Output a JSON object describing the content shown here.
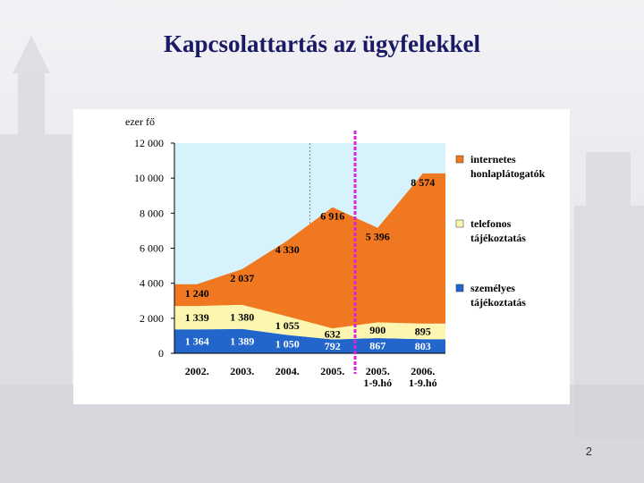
{
  "slide": {
    "title": "Kapcsolattartás az ügyfelekkel",
    "page_number": "2"
  },
  "colors": {
    "title": "#1a1a66",
    "plot_background": "#d6f3fb",
    "internet": "#f07820",
    "phone": "#fcf6b0",
    "personal": "#2266cc",
    "separator": "#dd22dd"
  },
  "chart_data": {
    "type": "area",
    "stacked": true,
    "ylabel": "ezer fő",
    "ylim": [
      0,
      12000
    ],
    "yticks": [
      0,
      2000,
      4000,
      6000,
      8000,
      10000,
      12000
    ],
    "ytick_labels": [
      "0",
      "2 000",
      "4 000",
      "6 000",
      "8 000",
      "10 000",
      "12 000"
    ],
    "categories": [
      "2002.",
      "2003.",
      "2004.",
      "2005.",
      "2005. 1-9.hó",
      "2006. 1-9.hó"
    ],
    "category_lines": [
      [
        "2002."
      ],
      [
        "2003."
      ],
      [
        "2004."
      ],
      [
        "2005."
      ],
      [
        "2005.",
        "1-9.hó"
      ],
      [
        "2006.",
        "1-9.hó"
      ]
    ],
    "legend_position": "right",
    "separator_after_category": "2005.",
    "series": [
      {
        "name": "személyes tájékoztatás",
        "values": [
          1364,
          1389,
          1050,
          792,
          867,
          803
        ],
        "labels": [
          "1 364",
          "1 389",
          "1 050",
          "792",
          "867",
          "803"
        ]
      },
      {
        "name": "telefonos tájékoztatás",
        "values": [
          1339,
          1380,
          1055,
          632,
          900,
          895
        ],
        "labels": [
          "1 339",
          "1 380",
          "1 055",
          "632",
          "900",
          "895"
        ]
      },
      {
        "name": "internetes honlaplátogatók",
        "values": [
          1240,
          2037,
          4330,
          6916,
          5396,
          8574
        ],
        "labels": [
          "1 240",
          "2 037",
          "4 330",
          "6 916",
          "5 396",
          "8 574"
        ]
      }
    ],
    "legend": [
      {
        "lines": [
          "internetes",
          "honlaplátogatók"
        ],
        "series": 2
      },
      {
        "lines": [
          "telefonos",
          "tájékoztatás"
        ],
        "series": 1
      },
      {
        "lines": [
          "személyes",
          "tájékoztatás"
        ],
        "series": 0
      }
    ]
  }
}
